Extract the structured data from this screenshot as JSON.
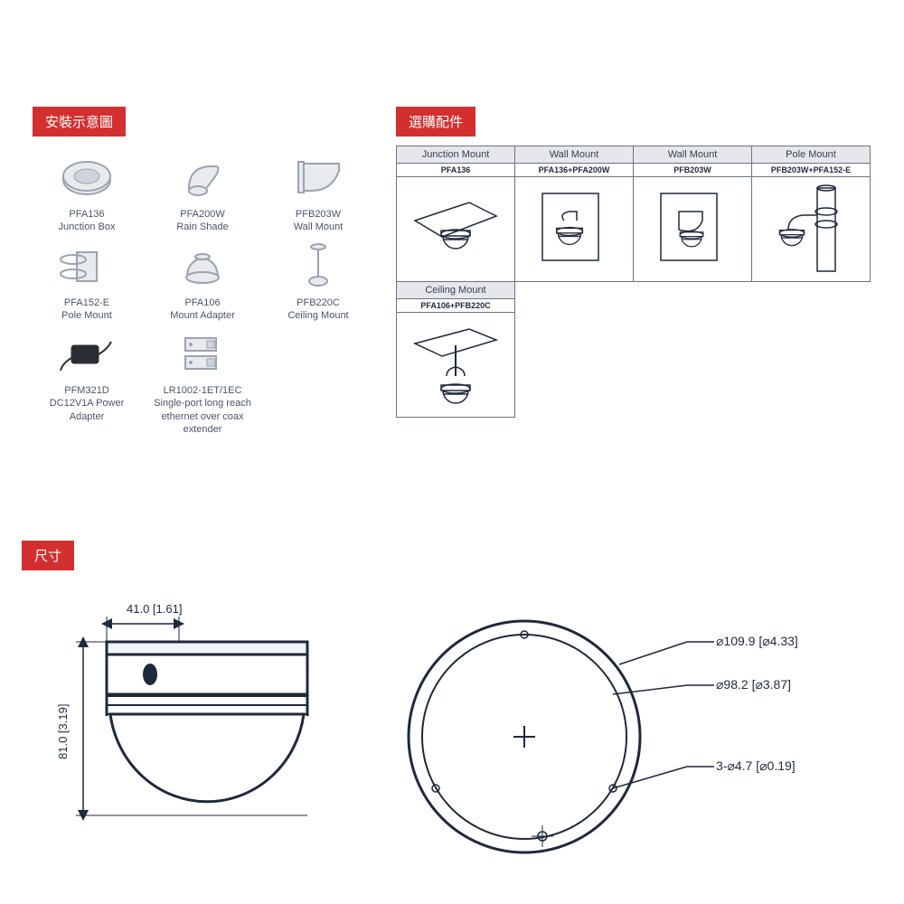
{
  "headers": {
    "accessories": "安裝示意圖",
    "mounts": "選購配件",
    "dimensions": "尺寸"
  },
  "accessories": [
    {
      "model": "PFA136",
      "desc": "Junction Box",
      "icon": "junction-box"
    },
    {
      "model": "PFA200W",
      "desc": "Rain Shade",
      "icon": "rain-shade"
    },
    {
      "model": "PFB203W",
      "desc": "Wall Mount",
      "icon": "wall-mount"
    },
    {
      "model": "PFA152-E",
      "desc": "Pole Mount",
      "icon": "pole-mount"
    },
    {
      "model": "PFA106",
      "desc": "Mount Adapter",
      "icon": "mount-adapter"
    },
    {
      "model": "PFB220C",
      "desc": "Ceiling Mount",
      "icon": "ceiling-mount"
    },
    {
      "model": "PFM321D",
      "desc": "DC12V1A Power Adapter",
      "icon": "power-adapter"
    },
    {
      "model": "LR1002-1ET/1EC",
      "desc": "Single-port long reach ethernet over coax extender",
      "icon": "extender"
    }
  ],
  "mounts_row1": [
    {
      "title": "Junction Mount",
      "sub": "PFA136",
      "icon": "m-junction"
    },
    {
      "title": "Wall Mount",
      "sub": "PFA136+PFA200W",
      "icon": "m-wall1"
    },
    {
      "title": "Wall Mount",
      "sub": "PFB203W",
      "icon": "m-wall2"
    },
    {
      "title": "Pole Mount",
      "sub": "PFB203W+PFA152-E",
      "icon": "m-pole"
    }
  ],
  "mounts_row2": [
    {
      "title": "Ceiling Mount",
      "sub": "PFA106+PFB220C",
      "icon": "m-ceiling"
    }
  ],
  "dimensions": {
    "side": {
      "width_label": "41.0 [1.61]",
      "height_label": "81.0 [3.19]"
    },
    "top": {
      "outer": "⌀109.9 [⌀4.33]",
      "inner": "⌀98.2 [⌀3.87]",
      "holes": "3-⌀4.7 [⌀0.19]"
    },
    "colors": {
      "line": "#1e293b",
      "fill_light": "#f3f4f6",
      "fill_gray": "#d1d5db"
    }
  }
}
